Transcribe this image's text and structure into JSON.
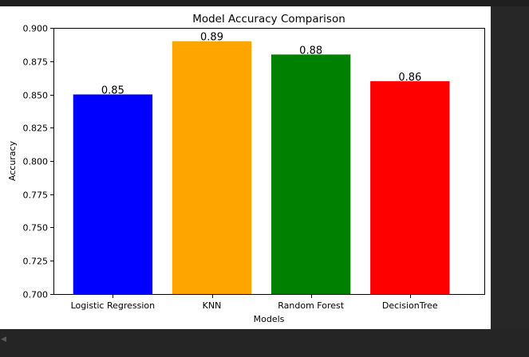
{
  "chart_data": {
    "type": "bar",
    "title": "Model Accuracy Comparison",
    "xlabel": "Models",
    "ylabel": "Accuracy",
    "categories": [
      "Logistic Regression",
      "KNN",
      "Random Forest",
      "DecisionTree"
    ],
    "values": [
      0.85,
      0.89,
      0.88,
      0.86
    ],
    "value_labels": [
      "0.85",
      "0.89",
      "0.88",
      "0.86"
    ],
    "colors": [
      "#0000ff",
      "#ffa500",
      "#008000",
      "#ff0000"
    ],
    "ylim": [
      0.7,
      0.9
    ],
    "yticks": [
      0.7,
      0.725,
      0.75,
      0.775,
      0.8,
      0.825,
      0.85,
      0.875,
      0.9
    ],
    "ytick_labels": [
      "0.700",
      "0.725",
      "0.750",
      "0.775",
      "0.800",
      "0.825",
      "0.850",
      "0.875",
      "0.900"
    ],
    "grid": false,
    "legend": "none"
  },
  "scroll_arrow_icon": "scroll-left-arrow-icon",
  "scroll_arrow_glyph": "◀"
}
